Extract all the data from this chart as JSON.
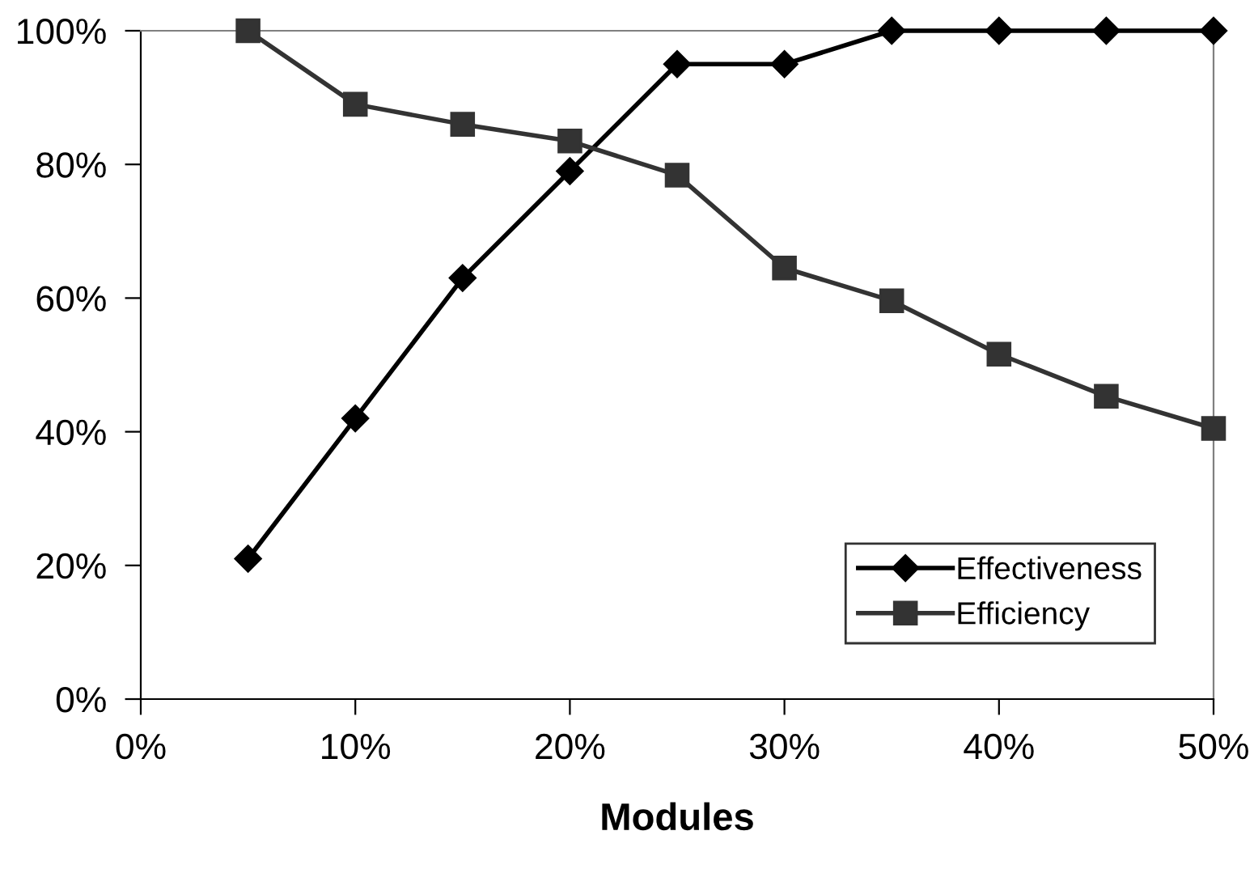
{
  "chart_data": {
    "type": "line",
    "xlabel": "Modules",
    "x": [
      5,
      10,
      15,
      20,
      25,
      30,
      35,
      40,
      45,
      50
    ],
    "series": [
      {
        "name": "Effectiveness",
        "color": "#000000",
        "marker": "diamond",
        "values": [
          21,
          42,
          63,
          79,
          95,
          95,
          100,
          100,
          100,
          100
        ]
      },
      {
        "name": "Efficiency",
        "color": "#333333",
        "marker": "square",
        "values": [
          100,
          89,
          86,
          83.5,
          78.4,
          64.5,
          59.6,
          51.6,
          45.3,
          40.5
        ]
      }
    ],
    "xlim": [
      0,
      50
    ],
    "ylim": [
      0,
      100
    ],
    "xticks": [
      {
        "value": 0,
        "label": "0%"
      },
      {
        "value": 10,
        "label": "10%"
      },
      {
        "value": 20,
        "label": "20%"
      },
      {
        "value": 30,
        "label": "30%"
      },
      {
        "value": 40,
        "label": "40%"
      },
      {
        "value": 50,
        "label": "50%"
      }
    ],
    "yticks": [
      {
        "value": 0,
        "label": "0%"
      },
      {
        "value": 20,
        "label": "20%"
      },
      {
        "value": 40,
        "label": "40%"
      },
      {
        "value": 60,
        "label": "60%"
      },
      {
        "value": 80,
        "label": "80%"
      },
      {
        "value": 100,
        "label": "100%"
      }
    ],
    "grid": false,
    "legend": "bottom right",
    "line_style": "solid"
  }
}
